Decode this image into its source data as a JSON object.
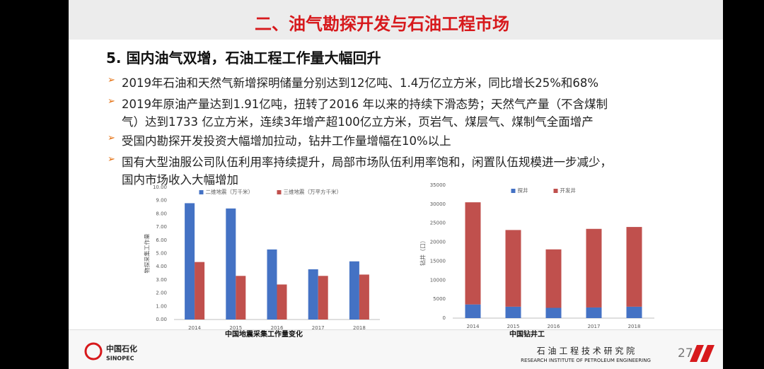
{
  "header": {
    "title": "二、油气勘探开发与石油工程市场"
  },
  "heading": "5. 国内油气双增，石油工程工作量大幅回升",
  "bullets": [
    [
      "2019年石油和天然气新增探明储量分别达到12亿吨、1.4万亿立方米，同比增长25%和68%"
    ],
    [
      "2019年原油产量达到1.91亿吨，扭转了2016 年以来的持续下滑态势；天然气产量（不含煤制",
      "气）达到1733 亿立方米，连续3年增产超100亿立方米，页岩气、煤层气、煤制气全面增产"
    ],
    [
      "受国内勘探开发投资大幅增加拉动，钻井工作量增幅在10%以上"
    ],
    [
      "国有大型油服公司队伍利用率持续提升，局部市场队伍利用率饱和，闲置队伍规模进一步减少，",
      "国内市场收入大幅增加"
    ]
  ],
  "chart_data": [
    {
      "type": "bar",
      "title": "中国地震采集工作量变化",
      "y_label": "物探采集工作量",
      "categories": [
        "2014",
        "2015",
        "2016",
        "2017",
        "2018"
      ],
      "series": [
        {
          "name": "二维地震（万千米）",
          "color": "#4472c4",
          "values": [
            8.8,
            8.4,
            5.3,
            3.8,
            4.4
          ]
        },
        {
          "name": "三维地震（万平方千米）",
          "color": "#c0504d",
          "values": [
            4.35,
            3.3,
            2.65,
            3.3,
            3.4
          ]
        }
      ],
      "ylim": [
        0,
        10
      ],
      "yticks": [
        {
          "value": 0,
          "label": "0.00"
        },
        {
          "value": 1,
          "label": "1.00"
        },
        {
          "value": 2,
          "label": "2.00"
        },
        {
          "value": 3,
          "label": "3.00"
        },
        {
          "value": 4,
          "label": "4.00"
        },
        {
          "value": 5,
          "label": "5.00"
        },
        {
          "value": 6,
          "label": "6.00"
        },
        {
          "value": 7,
          "label": "7.00"
        },
        {
          "value": 8,
          "label": "8.00"
        },
        {
          "value": 9,
          "label": "9.00"
        },
        {
          "value": 10,
          "label": "10.00"
        }
      ],
      "stacked": false,
      "grid": false,
      "legend": "top"
    },
    {
      "type": "bar",
      "title": "中国钻井工",
      "y_label": "钻井（口）",
      "categories": [
        "2014",
        "2015",
        "2016",
        "2017",
        "2018"
      ],
      "series": [
        {
          "name": "探井",
          "color": "#4472c4",
          "values": [
            3600,
            3000,
            2700,
            2800,
            3000
          ]
        },
        {
          "name": "开发井",
          "color": "#c0504d",
          "values": [
            26900,
            20200,
            15400,
            20700,
            21000
          ]
        }
      ],
      "ylim": [
        0,
        35000
      ],
      "yticks": [
        0,
        5000,
        10000,
        15000,
        20000,
        25000,
        30000,
        35000
      ],
      "stacked": true,
      "grid": false,
      "legend": "top"
    }
  ],
  "footer": {
    "logo_cn": "中国石化",
    "logo_en": "SINOPEC",
    "institute_cn": "石 油 工 程 技 术 研 究 院",
    "institute_en": "RESEARCH INSTITUTE OF PETROLEUM ENGINEERING",
    "page": "27"
  }
}
